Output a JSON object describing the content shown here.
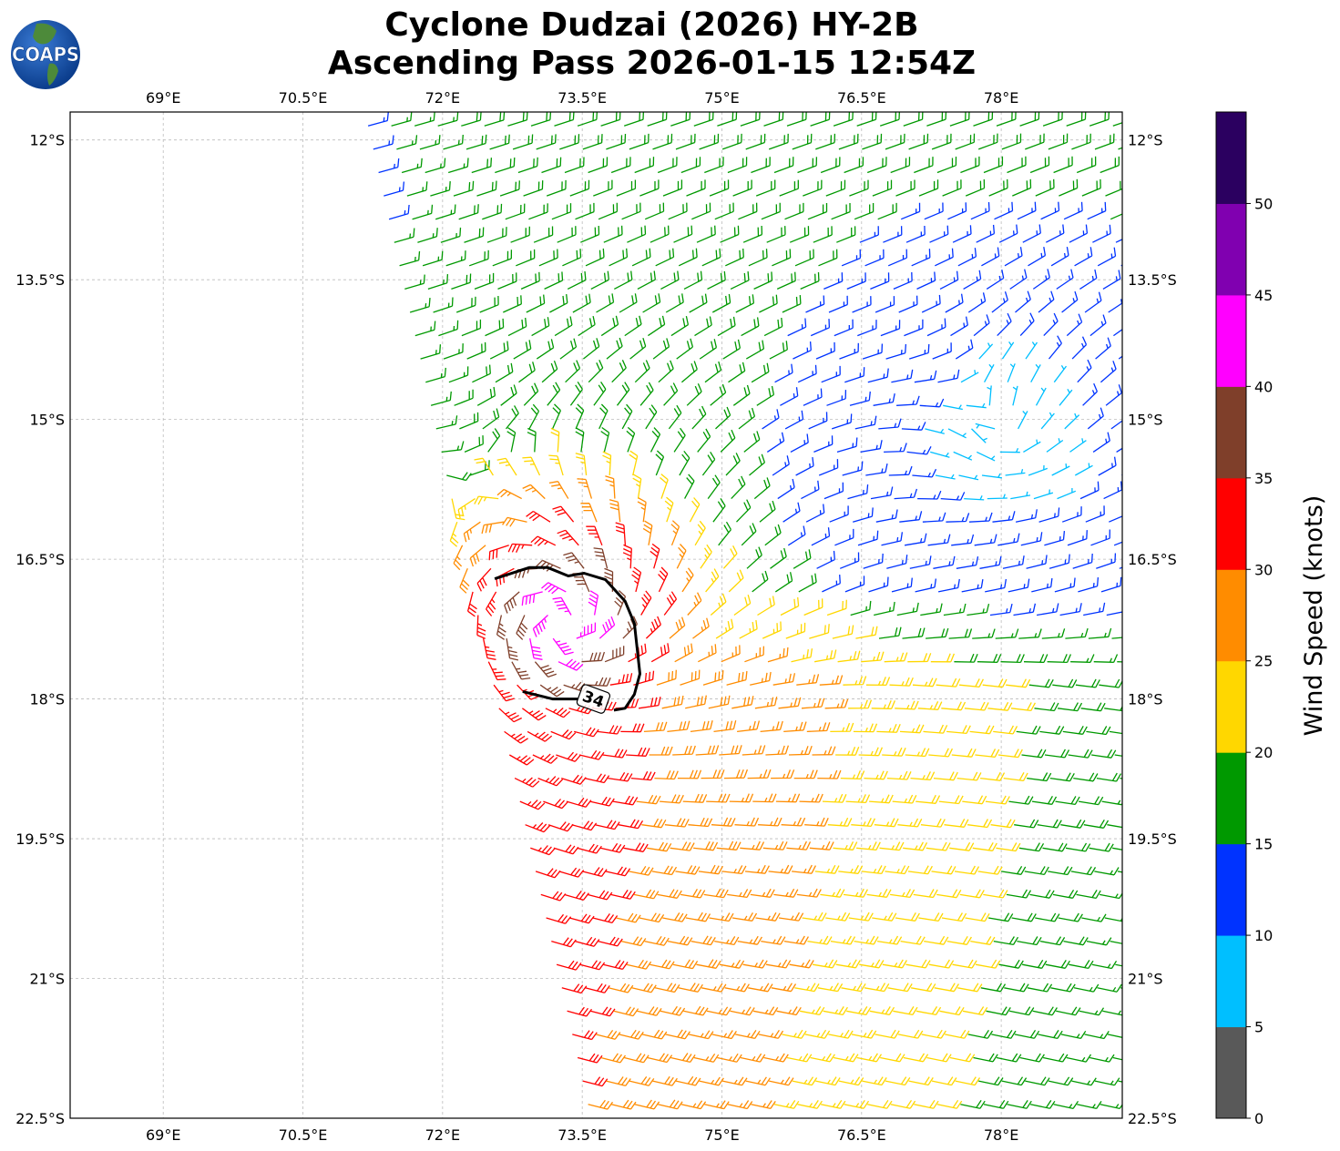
{
  "header": {
    "title_line1": "Cyclone Dudzai (2026) HY-2B",
    "title_line2": "Ascending Pass 2026-01-15 12:54Z",
    "logo_text": "COAPS"
  },
  "chart_data": {
    "type": "wind-barb-map",
    "title": "Cyclone Dudzai (2026) HY-2B Ascending Pass 2026-01-15 12:54Z",
    "xlim": [
      68.0,
      79.3
    ],
    "ylim": [
      11.7,
      22.5
    ],
    "x_ticks": [
      69,
      70.5,
      72,
      73.5,
      75,
      76.5,
      78
    ],
    "x_tick_labels": [
      "69°E",
      "70.5°E",
      "72°E",
      "73.5°E",
      "75°E",
      "76.5°E",
      "78°E"
    ],
    "y_ticks": [
      12,
      13.5,
      15,
      16.5,
      18,
      19.5,
      21,
      22.5
    ],
    "y_tick_labels": [
      "12°S",
      "13.5°S",
      "15°S",
      "16.5°S",
      "18°S",
      "19.5°S",
      "21°S",
      "22.5°S"
    ],
    "grid": true,
    "colorbar": {
      "label": "Wind Speed (knots)",
      "levels": [
        0,
        5,
        10,
        15,
        20,
        25,
        30,
        35,
        40,
        45,
        50,
        55
      ],
      "tick_values": [
        0,
        5,
        10,
        15,
        20,
        25,
        30,
        35,
        40,
        45,
        50
      ],
      "tick_labels": [
        "0",
        "5",
        "10",
        "15",
        "20",
        "25",
        "30",
        "35",
        "40",
        "45",
        "50"
      ],
      "colors": [
        "#595959",
        "#00bfff",
        "#0033ff",
        "#009900",
        "#ffd700",
        "#ff8c00",
        "#ff0000",
        "#7f3f2a",
        "#ff00ff",
        "#8000b0",
        "#2b0060"
      ]
    },
    "wind_field": {
      "cyclone_center_lon": 73.3,
      "cyclone_center_lat_s": 17.2,
      "peak_wind_kt": 45,
      "secondary_low_center_lon": 78.0,
      "secondary_low_center_lat_s": 15.2,
      "grid_spacing_deg": 0.25,
      "swath_lat_s_range": [
        11.85,
        22.4
      ]
    },
    "contour_34kt": {
      "label": "34",
      "label_lon": 73.62,
      "label_lat_s": 18.0,
      "segments": [
        [
          [
            72.56,
            16.71
          ],
          [
            72.93,
            16.59
          ],
          [
            73.13,
            16.59
          ],
          [
            73.35,
            16.68
          ],
          [
            73.52,
            16.65
          ],
          [
            73.75,
            16.72
          ],
          [
            73.96,
            16.95
          ],
          [
            74.06,
            17.19
          ],
          [
            74.12,
            17.73
          ],
          [
            74.06,
            17.95
          ],
          [
            73.96,
            18.1
          ],
          [
            73.84,
            18.12
          ]
        ],
        [
          [
            73.45,
            18.0
          ],
          [
            73.18,
            18.0
          ],
          [
            72.86,
            17.92
          ]
        ]
      ]
    }
  }
}
